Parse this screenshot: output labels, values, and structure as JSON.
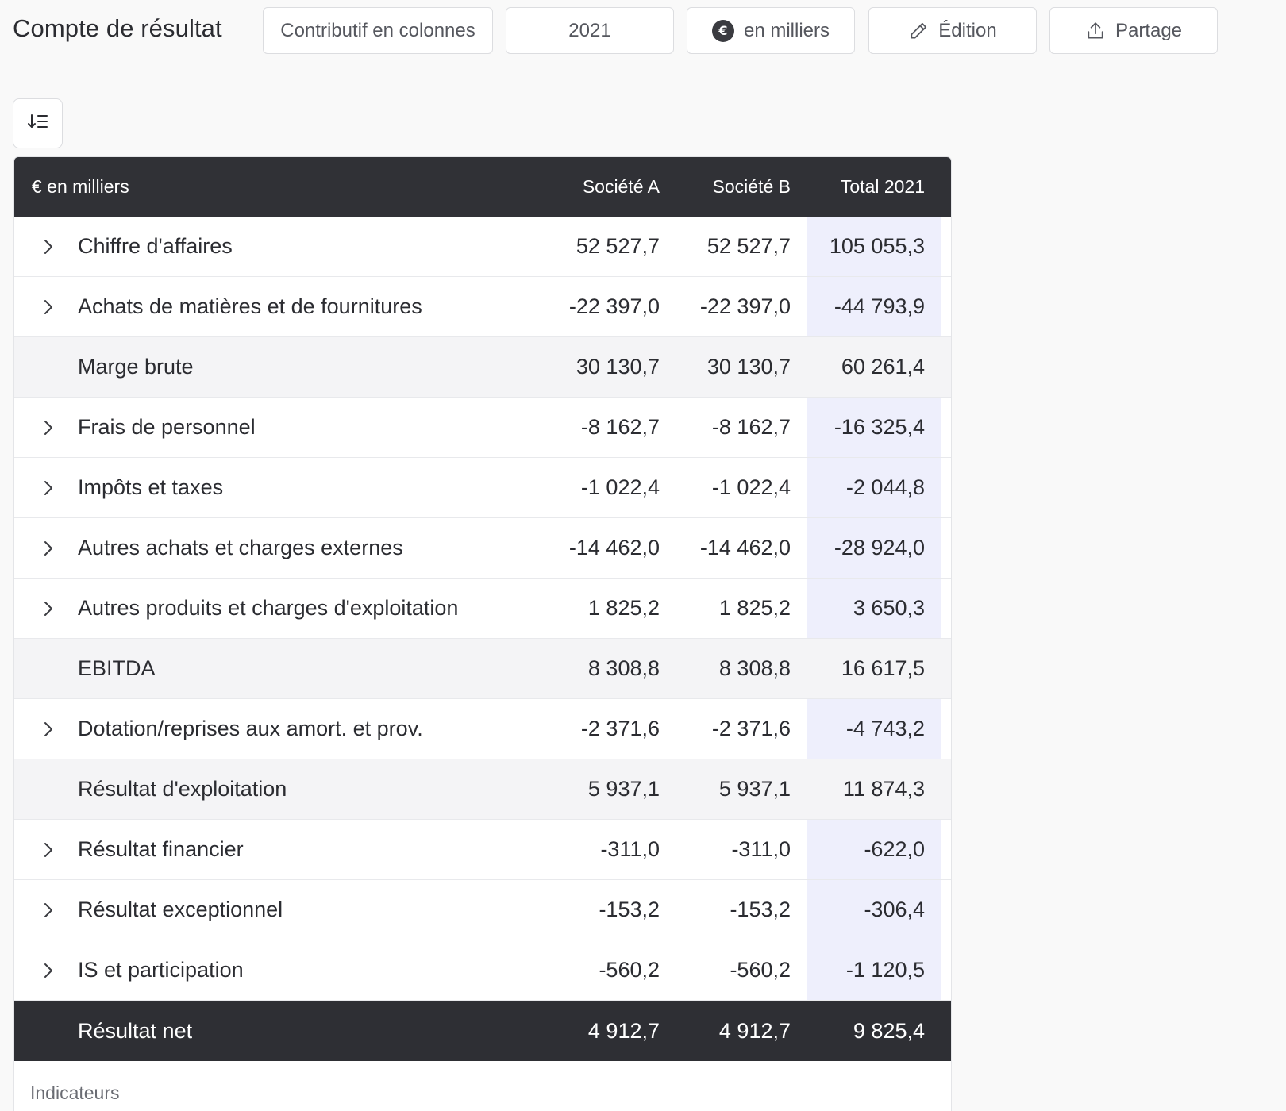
{
  "header": {
    "title": "Compte de résultat",
    "view_label": "Contributif en colonnes",
    "year_label": "2021",
    "currency_symbol": "€",
    "unit_label": "en milliers",
    "edit_label": "Édition",
    "share_label": "Partage"
  },
  "table": {
    "columns": {
      "label": "€ en milliers",
      "company_a": "Société A",
      "company_b": "Société B",
      "total": "Total 2021"
    },
    "rows": [
      {
        "label": "Chiffre d'affaires",
        "a": "52 527,7",
        "b": "52 527,7",
        "total": "105 055,3"
      },
      {
        "label": "Achats de matières et de fournitures",
        "a": "-22 397,0",
        "b": "-22 397,0",
        "total": "-44 793,9"
      },
      {
        "label": "Marge brute",
        "a": "30 130,7",
        "b": "30 130,7",
        "total": "60 261,4"
      },
      {
        "label": "Frais de personnel",
        "a": "-8 162,7",
        "b": "-8 162,7",
        "total": "-16 325,4"
      },
      {
        "label": "Impôts et taxes",
        "a": "-1 022,4",
        "b": "-1 022,4",
        "total": "-2 044,8"
      },
      {
        "label": "Autres achats et charges externes",
        "a": "-14 462,0",
        "b": "-14 462,0",
        "total": "-28 924,0"
      },
      {
        "label": "Autres produits et charges d'exploitation",
        "a": "1 825,2",
        "b": "1 825,2",
        "total": "3 650,3"
      },
      {
        "label": "EBITDA",
        "a": "8 308,8",
        "b": "8 308,8",
        "total": "16 617,5"
      },
      {
        "label": "Dotation/reprises aux amort. et prov.",
        "a": "-2 371,6",
        "b": "-2 371,6",
        "total": "-4 743,2"
      },
      {
        "label": "Résultat d'exploitation",
        "a": "5 937,1",
        "b": "5 937,1",
        "total": "11 874,3"
      },
      {
        "label": "Résultat financier",
        "a": "-311,0",
        "b": "-311,0",
        "total": "-622,0"
      },
      {
        "label": "Résultat exceptionnel",
        "a": "-153,2",
        "b": "-153,2",
        "total": "-306,4"
      },
      {
        "label": "IS et participation",
        "a": "-560,2",
        "b": "-560,2",
        "total": "-1 120,5"
      },
      {
        "label": "Résultat net",
        "a": "4 912,7",
        "b": "4 912,7",
        "total": "9 825,4"
      }
    ],
    "footer_section": "Indicateurs"
  },
  "colors": {
    "header_bg": "#303136",
    "total_column_highlight": "#eeeffc",
    "subtotal_bg": "#f4f4f6"
  },
  "icons": [
    "euro-icon",
    "pencil-icon",
    "share-upload-icon",
    "sort-list-icon",
    "chevron-right-icon"
  ]
}
